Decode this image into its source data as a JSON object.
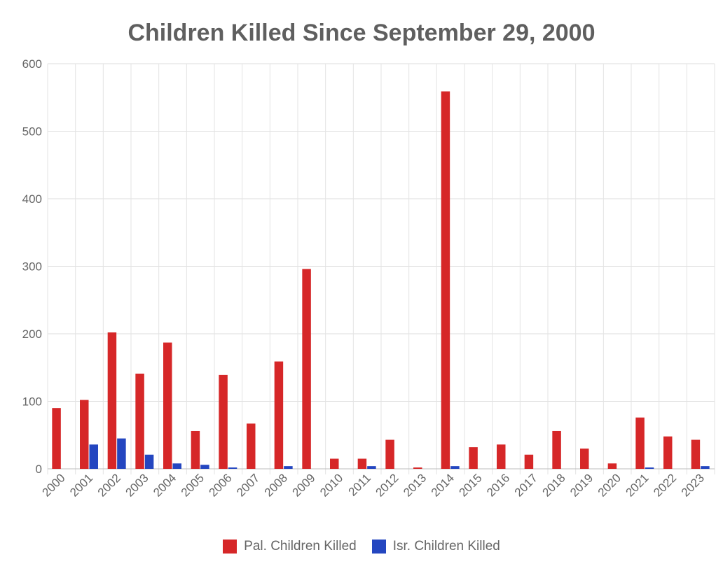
{
  "chart_data": {
    "type": "bar",
    "title": "Children Killed Since September 29, 2000",
    "xlabel": "",
    "ylabel": "",
    "ylim": [
      0,
      600
    ],
    "yticks": [
      0,
      100,
      200,
      300,
      400,
      500,
      600
    ],
    "grid": true,
    "legend_position": "bottom",
    "categories": [
      "2000",
      "2001",
      "2002",
      "2003",
      "2004",
      "2005",
      "2006",
      "2007",
      "2008",
      "2009",
      "2010",
      "2011",
      "2012",
      "2013",
      "2014",
      "2015",
      "2016",
      "2017",
      "2018",
      "2019",
      "2020",
      "2021",
      "2022",
      "2023"
    ],
    "series": [
      {
        "name": "Pal. Children Killed",
        "color": "#d62728",
        "values": [
          90,
          102,
          202,
          141,
          187,
          56,
          139,
          67,
          159,
          296,
          15,
          15,
          43,
          2,
          559,
          32,
          36,
          21,
          56,
          30,
          8,
          76,
          48,
          43
        ]
      },
      {
        "name": "Isr. Children Killed",
        "color": "#2446c0",
        "values": [
          0,
          36,
          45,
          21,
          8,
          6,
          2,
          0,
          4,
          0,
          0,
          4,
          0,
          0,
          4,
          0,
          0,
          0,
          0,
          0,
          0,
          2,
          0,
          4
        ]
      }
    ]
  }
}
